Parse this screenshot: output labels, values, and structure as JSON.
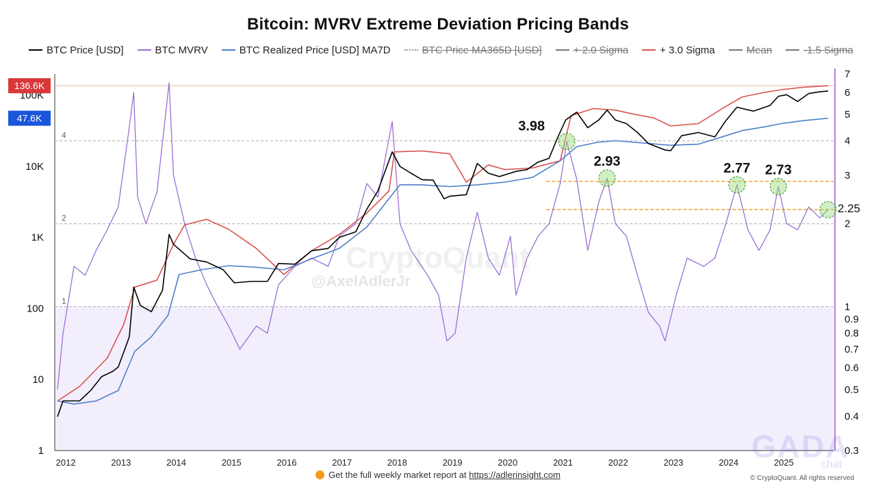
{
  "title": "Bitcoin: MVRV Extreme Deviation Pricing Bands",
  "legend": [
    {
      "label": "BTC Price [USD]",
      "color": "#000000",
      "off": false,
      "style": "solid"
    },
    {
      "label": "BTC MVRV",
      "color": "#9a6fd6",
      "off": false,
      "style": "solid"
    },
    {
      "label": "BTC Realized Price [USD] MA7D",
      "color": "#4d7fc8",
      "off": false,
      "style": "solid"
    },
    {
      "label": "BTC Price MA365D [USD]",
      "color": "#999999",
      "off": true,
      "style": "dotted"
    },
    {
      "label": "+ 2.0 Sigma",
      "color": "#777777",
      "off": true,
      "style": "solid"
    },
    {
      "label": "+ 3.0 Sigma",
      "color": "#d9534f",
      "off": false,
      "style": "solid"
    },
    {
      "label": "Mean",
      "color": "#777777",
      "off": true,
      "style": "solid"
    },
    {
      "label": "-1.5 Sigma",
      "color": "#777777",
      "off": true,
      "style": "solid"
    }
  ],
  "badges": [
    {
      "text": "136.6K",
      "color": "#d9383a"
    },
    {
      "text": "47.6K",
      "color": "#1a56db"
    }
  ],
  "chart_data": {
    "type": "line",
    "x_axis": {
      "ticks": [
        "2012",
        "2013",
        "2014",
        "2015",
        "2016",
        "2017",
        "2018",
        "2019",
        "2020",
        "2021",
        "2022",
        "2023",
        "2024",
        "2025"
      ]
    },
    "y_left": {
      "scale": "log",
      "range": [
        1,
        200000
      ],
      "ticks": [
        {
          "label": "1",
          "value": 1
        },
        {
          "label": "10",
          "value": 10
        },
        {
          "label": "100",
          "value": 100
        },
        {
          "label": "1K",
          "value": 1000
        },
        {
          "label": "10K",
          "value": 10000
        },
        {
          "label": "100K",
          "value": 100000
        }
      ]
    },
    "y_right": {
      "scale": "log",
      "range": [
        0.3,
        7
      ],
      "ticks": [
        {
          "label": "7",
          "value": 7
        },
        {
          "label": "6",
          "value": 6
        },
        {
          "label": "5",
          "value": 5
        },
        {
          "label": "4",
          "value": 4
        },
        {
          "label": "3",
          "value": 3
        },
        {
          "label": "2",
          "value": 2
        },
        {
          "label": "1",
          "value": 1
        },
        {
          "label": "0.9",
          "value": 0.9
        },
        {
          "label": "0.8",
          "value": 0.8
        },
        {
          "label": "0.7",
          "value": 0.7
        },
        {
          "label": "0.6",
          "value": 0.6
        },
        {
          "label": "0.5",
          "value": 0.5
        },
        {
          "label": "0.4",
          "value": 0.4
        },
        {
          "label": "0.3",
          "value": 0.3
        }
      ]
    },
    "mvrv_levels": [
      {
        "label": "4",
        "value": 4
      },
      {
        "label": "2",
        "value": 2
      },
      {
        "label": "1",
        "value": 1
      }
    ],
    "price_marker": 136600,
    "series": [
      {
        "name": "BTC Price [USD]",
        "color": "#000000",
        "axis": "left",
        "x": [
          2011.9,
          2012.0,
          2012.3,
          2012.5,
          2012.7,
          2012.9,
          2013.0,
          2013.2,
          2013.28,
          2013.4,
          2013.6,
          2013.8,
          2013.92,
          2014.0,
          2014.3,
          2014.6,
          2014.9,
          2015.1,
          2015.4,
          2015.7,
          2015.9,
          2016.2,
          2016.5,
          2016.8,
          2017.0,
          2017.3,
          2017.5,
          2017.7,
          2017.9,
          2017.96,
          2018.1,
          2018.3,
          2018.5,
          2018.7,
          2018.9,
          2019.0,
          2019.3,
          2019.5,
          2019.7,
          2019.9,
          2020.2,
          2020.4,
          2020.6,
          2020.8,
          2020.95,
          2021.1,
          2021.3,
          2021.5,
          2021.7,
          2021.85,
          2022.0,
          2022.2,
          2022.4,
          2022.6,
          2022.9,
          2023.0,
          2023.2,
          2023.5,
          2023.8,
          2024.0,
          2024.2,
          2024.5,
          2024.8,
          2024.95,
          2025.1,
          2025.3,
          2025.5,
          2025.7,
          2025.85
        ],
        "y": [
          3,
          5,
          5,
          7,
          11,
          13,
          15,
          40,
          200,
          110,
          90,
          180,
          1100,
          800,
          500,
          450,
          350,
          230,
          240,
          240,
          430,
          420,
          650,
          700,
          1000,
          1200,
          2500,
          4500,
          12000,
          16000,
          10000,
          8000,
          6500,
          6400,
          3500,
          3800,
          4000,
          11000,
          8000,
          7200,
          8500,
          9000,
          11500,
          13000,
          25000,
          45000,
          58000,
          35000,
          45000,
          62000,
          45000,
          40000,
          30000,
          21000,
          17000,
          16600,
          27000,
          30000,
          26000,
          44000,
          68000,
          60000,
          72000,
          97000,
          102000,
          82000,
          106000,
          112000,
          115000
        ]
      },
      {
        "name": "BTC Realized Price [USD] MA7D",
        "color": "#4d7fc8",
        "axis": "left",
        "x": [
          2011.9,
          2012.2,
          2012.6,
          2013.0,
          2013.3,
          2013.6,
          2013.9,
          2014.1,
          2014.5,
          2015.0,
          2015.5,
          2016.0,
          2016.5,
          2017.0,
          2017.5,
          2017.9,
          2018.1,
          2018.5,
          2019.0,
          2019.5,
          2020.0,
          2020.5,
          2021.0,
          2021.3,
          2021.7,
          2022.0,
          2022.3,
          2022.6,
          2023.0,
          2023.5,
          2024.0,
          2024.3,
          2024.7,
          2025.0,
          2025.4,
          2025.85
        ],
        "y": [
          5,
          4.5,
          5,
          7,
          25,
          40,
          80,
          300,
          350,
          400,
          380,
          350,
          500,
          700,
          1400,
          3500,
          5500,
          5500,
          5200,
          5500,
          6000,
          7000,
          12000,
          19000,
          22000,
          23000,
          22000,
          21000,
          19800,
          20500,
          27000,
          32000,
          36000,
          40000,
          44000,
          47600
        ]
      },
      {
        "name": "+ 3.0 Sigma",
        "color": "#d9534f",
        "axis": "left",
        "x": [
          2011.9,
          2012.3,
          2012.8,
          2013.1,
          2013.3,
          2013.7,
          2014.0,
          2014.2,
          2014.6,
          2015.0,
          2015.5,
          2016.0,
          2016.5,
          2017.0,
          2017.5,
          2017.9,
          2018.0,
          2018.5,
          2019.0,
          2019.3,
          2019.7,
          2020.0,
          2020.5,
          2021.0,
          2021.2,
          2021.6,
          2022.0,
          2022.3,
          2022.7,
          2023.0,
          2023.5,
          2024.0,
          2024.3,
          2024.7,
          2025.0,
          2025.4,
          2025.85
        ],
        "y": [
          5,
          8,
          20,
          60,
          200,
          250,
          800,
          1500,
          1800,
          1300,
          700,
          300,
          650,
          1100,
          2200,
          4500,
          16000,
          16500,
          15000,
          6000,
          10500,
          9000,
          9500,
          12000,
          52000,
          65000,
          62000,
          55000,
          48000,
          37000,
          40000,
          70000,
          95000,
          110000,
          120000,
          130000,
          136600
        ]
      },
      {
        "name": "BTC MVRV",
        "color": "#9a6fd6",
        "axis": "right",
        "x": [
          2011.9,
          2012.0,
          2012.2,
          2012.4,
          2012.6,
          2012.8,
          2013.0,
          2013.2,
          2013.28,
          2013.35,
          2013.5,
          2013.7,
          2013.92,
          2014.0,
          2014.2,
          2014.4,
          2014.6,
          2014.8,
          2015.0,
          2015.2,
          2015.5,
          2015.7,
          2015.9,
          2016.2,
          2016.5,
          2016.8,
          2017.0,
          2017.3,
          2017.5,
          2017.7,
          2017.96,
          2018.1,
          2018.3,
          2018.6,
          2018.8,
          2018.95,
          2019.1,
          2019.3,
          2019.5,
          2019.7,
          2019.9,
          2020.1,
          2020.2,
          2020.4,
          2020.6,
          2020.8,
          2021.0,
          2021.12,
          2021.3,
          2021.5,
          2021.7,
          2021.85,
          2022.0,
          2022.2,
          2022.45,
          2022.6,
          2022.8,
          2022.9,
          2023.1,
          2023.3,
          2023.6,
          2023.8,
          2024.0,
          2024.2,
          2024.4,
          2024.6,
          2024.8,
          2024.95,
          2025.1,
          2025.3,
          2025.5,
          2025.7,
          2025.85
        ],
        "y": [
          0.5,
          0.8,
          1.4,
          1.3,
          1.6,
          1.9,
          2.3,
          4.5,
          6.0,
          2.5,
          2.0,
          2.6,
          6.5,
          3.0,
          2.0,
          1.5,
          1.2,
          1.0,
          0.85,
          0.7,
          0.85,
          0.8,
          1.2,
          1.4,
          1.5,
          1.4,
          1.8,
          2.0,
          2.8,
          2.5,
          4.7,
          2.0,
          1.6,
          1.3,
          1.1,
          0.75,
          0.8,
          1.5,
          2.2,
          1.5,
          1.3,
          1.8,
          1.1,
          1.5,
          1.8,
          2.0,
          2.8,
          3.98,
          2.9,
          1.6,
          2.4,
          2.93,
          2.0,
          1.8,
          1.2,
          0.95,
          0.85,
          0.75,
          1.1,
          1.5,
          1.4,
          1.5,
          2.0,
          2.77,
          1.9,
          1.6,
          1.9,
          2.73,
          2.0,
          1.9,
          2.3,
          2.1,
          2.25
        ]
      }
    ],
    "thresholds": [
      {
        "value": 2.85,
        "axis": "right",
        "color": "#f0a020"
      },
      {
        "value": 2.25,
        "axis": "right",
        "color": "#f0a020"
      }
    ],
    "annotations": [
      {
        "text": "3.98",
        "x": 2021.12,
        "value": 3.98
      },
      {
        "text": "2.93",
        "x": 2021.85,
        "value": 2.93
      },
      {
        "text": "2.77",
        "x": 2024.2,
        "value": 2.77
      },
      {
        "text": "2.73",
        "x": 2024.95,
        "value": 2.73
      },
      {
        "text": "2.25",
        "x": 2025.85,
        "value": 2.25
      }
    ]
  },
  "watermark": {
    "brand": "CryptoQuant",
    "user": "@AxelAdlerJr"
  },
  "footer": {
    "text": "Get the full weekly market report at",
    "link": "https://adlerinsight.com"
  },
  "copyright": "© CryptoQuant. All rights reserved",
  "gada": {
    "logo": "GADA",
    "sub": "chat"
  }
}
